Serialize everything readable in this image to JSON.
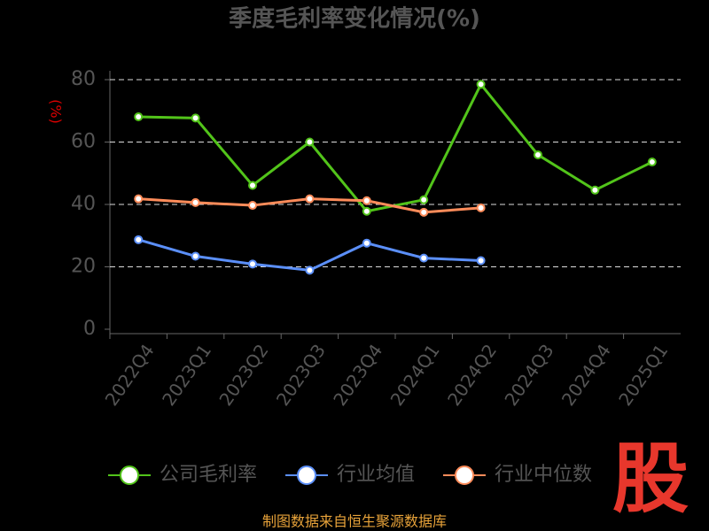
{
  "chart_data": {
    "type": "line",
    "title": "季度毛利率变化情况(%)",
    "y_label": "(%)",
    "categories": [
      "2022Q4",
      "2023Q1",
      "2023Q2",
      "2023Q3",
      "2023Q4",
      "2024Q1",
      "2024Q2",
      "2024Q3",
      "2024Q4",
      "2025Q1"
    ],
    "series": [
      {
        "name": "公司毛利率",
        "color": "#52c41a",
        "values": [
          68.1,
          67.7,
          46.1,
          60.0,
          37.8,
          41.5,
          78.5,
          55.9,
          44.6,
          53.6
        ]
      },
      {
        "name": "行业均值",
        "color": "#5b8ff9",
        "values": [
          28.7,
          23.4,
          20.9,
          18.9,
          27.6,
          22.8,
          22.0,
          null,
          null,
          null
        ]
      },
      {
        "name": "行业中位数",
        "color": "#ff8c5a",
        "values": [
          41.8,
          40.6,
          39.7,
          41.8,
          41.2,
          37.5,
          38.9,
          null,
          null,
          null
        ]
      }
    ],
    "ylim": [
      0,
      80
    ],
    "yticks": [
      0,
      20,
      40,
      60,
      80
    ],
    "grid": true,
    "source": "制图数据来自恒生聚源数据库",
    "logo": "股"
  }
}
